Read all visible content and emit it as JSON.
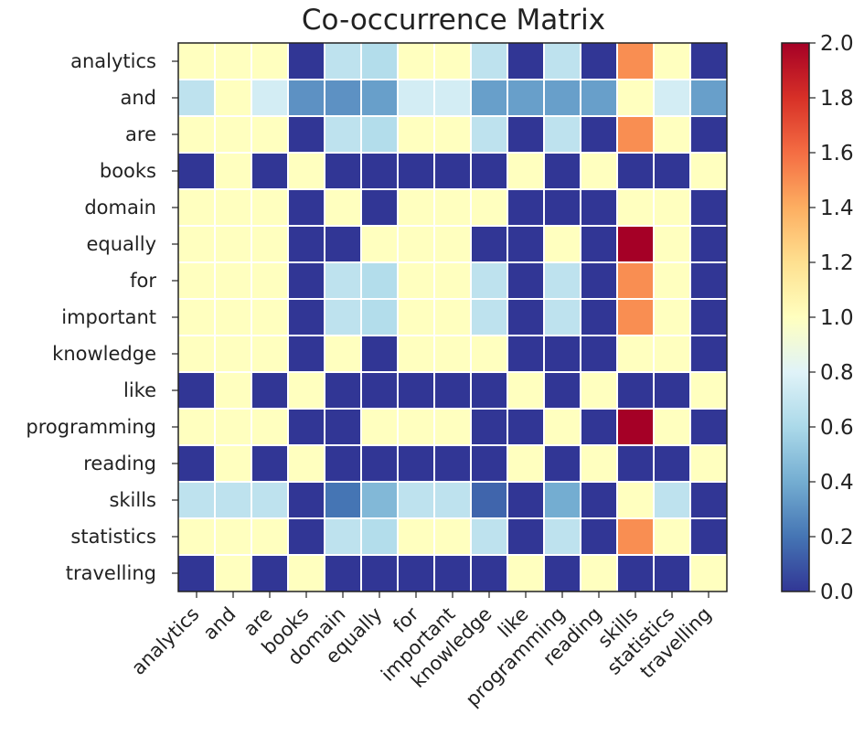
{
  "chart_data": {
    "type": "heatmap",
    "title": "Co-occurrence Matrix",
    "xlabel": "",
    "ylabel": "",
    "rows": [
      "analytics",
      "and",
      "are",
      "books",
      "domain",
      "equally",
      "for",
      "important",
      "knowledge",
      "like",
      "programming",
      "reading",
      "skills",
      "statistics",
      "travelling"
    ],
    "columns": [
      "analytics",
      "and",
      "are",
      "books",
      "domain",
      "equally",
      "for",
      "important",
      "knowledge",
      "like",
      "programming",
      "reading",
      "skills",
      "statistics",
      "travelling"
    ],
    "values": [
      [
        1.0,
        1.0,
        1.0,
        0.0,
        0.67,
        0.63,
        1.0,
        1.0,
        0.67,
        0.0,
        0.67,
        0.0,
        1.5,
        1.0,
        0.0
      ],
      [
        0.67,
        1.0,
        0.75,
        0.3,
        0.3,
        0.35,
        0.75,
        0.75,
        0.35,
        0.35,
        0.35,
        0.35,
        1.0,
        0.75,
        0.35
      ],
      [
        1.0,
        1.0,
        1.0,
        0.0,
        0.67,
        0.63,
        1.0,
        1.0,
        0.67,
        0.0,
        0.67,
        0.0,
        1.5,
        1.0,
        0.0
      ],
      [
        0.0,
        1.0,
        0.0,
        1.0,
        0.0,
        0.0,
        0.0,
        0.0,
        0.0,
        1.0,
        0.0,
        1.0,
        0.0,
        0.0,
        1.0
      ],
      [
        1.0,
        1.0,
        1.0,
        0.0,
        1.0,
        0.0,
        1.0,
        1.0,
        1.0,
        0.0,
        0.0,
        0.0,
        1.0,
        1.0,
        0.0
      ],
      [
        1.0,
        1.0,
        1.0,
        0.0,
        0.0,
        1.0,
        1.0,
        1.0,
        0.0,
        0.0,
        1.0,
        0.0,
        2.0,
        1.0,
        0.0
      ],
      [
        1.0,
        1.0,
        1.0,
        0.0,
        0.67,
        0.63,
        1.0,
        1.0,
        0.67,
        0.0,
        0.67,
        0.0,
        1.5,
        1.0,
        0.0
      ],
      [
        1.0,
        1.0,
        1.0,
        0.0,
        0.67,
        0.63,
        1.0,
        1.0,
        0.67,
        0.0,
        0.67,
        0.0,
        1.5,
        1.0,
        0.0
      ],
      [
        1.0,
        1.0,
        1.0,
        0.0,
        1.0,
        0.0,
        1.0,
        1.0,
        1.0,
        0.0,
        0.0,
        0.0,
        1.0,
        1.0,
        0.0
      ],
      [
        0.0,
        1.0,
        0.0,
        1.0,
        0.0,
        0.0,
        0.0,
        0.0,
        0.0,
        1.0,
        0.0,
        1.0,
        0.0,
        0.0,
        1.0
      ],
      [
        1.0,
        1.0,
        1.0,
        0.0,
        0.0,
        1.0,
        1.0,
        1.0,
        0.0,
        0.0,
        1.0,
        0.0,
        2.0,
        1.0,
        0.0
      ],
      [
        0.0,
        1.0,
        0.0,
        1.0,
        0.0,
        0.0,
        0.0,
        0.0,
        0.0,
        1.0,
        0.0,
        1.0,
        0.0,
        0.0,
        1.0
      ],
      [
        0.67,
        0.67,
        0.67,
        0.0,
        0.2,
        0.45,
        0.67,
        0.67,
        0.15,
        0.0,
        0.4,
        0.0,
        1.0,
        0.67,
        0.0
      ],
      [
        1.0,
        1.0,
        1.0,
        0.0,
        0.67,
        0.63,
        1.0,
        1.0,
        0.67,
        0.0,
        0.67,
        0.0,
        1.5,
        1.0,
        0.0
      ],
      [
        0.0,
        1.0,
        0.0,
        1.0,
        0.0,
        0.0,
        0.0,
        0.0,
        0.0,
        1.0,
        0.0,
        1.0,
        0.0,
        0.0,
        1.0
      ]
    ],
    "colorbar": {
      "range": [
        0.0,
        2.0
      ],
      "ticks": [
        "0.0",
        "0.2",
        "0.4",
        "0.6",
        "0.8",
        "1.0",
        "1.2",
        "1.4",
        "1.6",
        "1.8",
        "2.0"
      ],
      "colormap": "RdYlBu_r",
      "colors": [
        "#313695",
        "#4575b4",
        "#74add1",
        "#abd9e9",
        "#e0f3f8",
        "#ffffbf",
        "#fee090",
        "#fdae61",
        "#f46d43",
        "#d73027",
        "#a50026"
      ]
    },
    "grid": true,
    "legend": "none"
  }
}
